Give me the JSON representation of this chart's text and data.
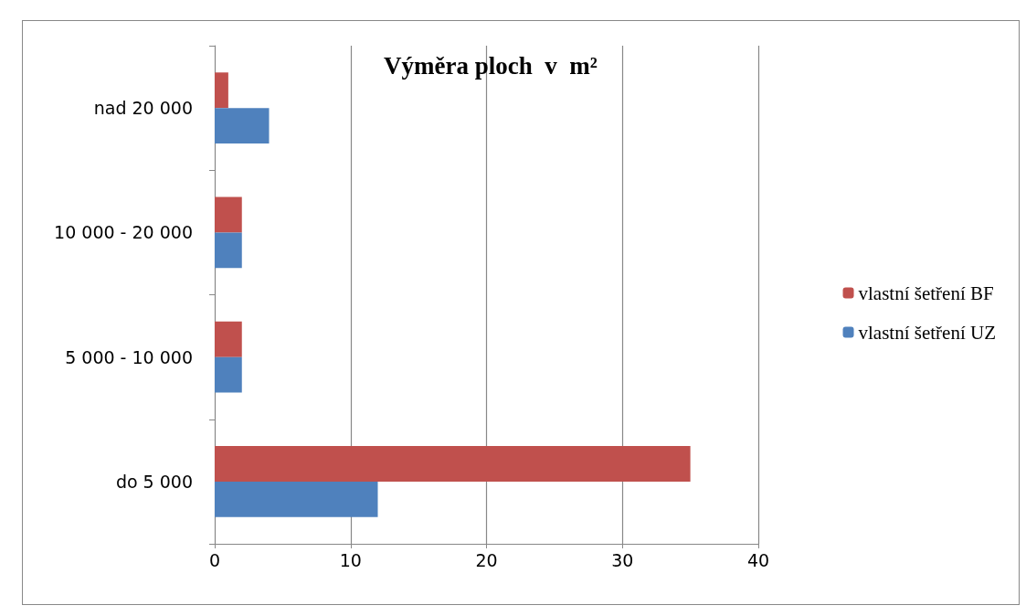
{
  "chart_data": {
    "type": "bar",
    "orientation": "horizontal",
    "title": "Výměra ploch  v  m²",
    "categories": [
      "nad 20 000",
      "10 000 - 20 000",
      "5 000 - 10 000",
      "do 5 000"
    ],
    "series": [
      {
        "name": "vlastní šetření BF",
        "color": "#c0504d",
        "values": [
          1,
          2,
          2,
          35
        ]
      },
      {
        "name": "vlastní šetření UZ",
        "color": "#4f81bd",
        "values": [
          4,
          2,
          2,
          12
        ]
      }
    ],
    "xlim": [
      0,
      40
    ],
    "xticks": [
      0,
      10,
      20,
      30,
      40
    ],
    "grid": "x",
    "legend": "right"
  }
}
